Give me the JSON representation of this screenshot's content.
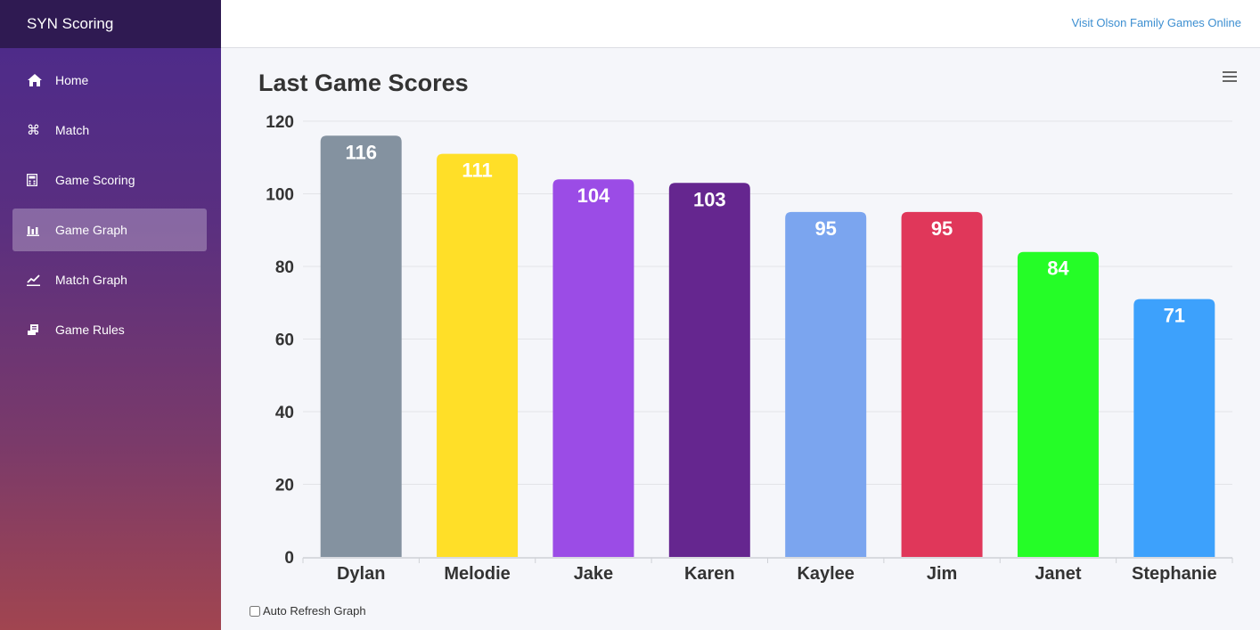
{
  "sidebar": {
    "brand": "SYN Scoring",
    "items": [
      {
        "label": "Home",
        "icon": "home-icon"
      },
      {
        "label": "Match",
        "icon": "command-icon"
      },
      {
        "label": "Game Scoring",
        "icon": "calculator-icon"
      },
      {
        "label": "Game Graph",
        "icon": "bar-chart-icon",
        "active": true
      },
      {
        "label": "Match Graph",
        "icon": "line-chart-icon"
      },
      {
        "label": "Game Rules",
        "icon": "scroll-icon"
      }
    ]
  },
  "header": {
    "link": "Visit Olson Family Games Online"
  },
  "controls": {
    "auto_refresh_label": "Auto Refresh Graph"
  },
  "chart_data": {
    "type": "bar",
    "title": "Last Game Scores",
    "categories": [
      "Dylan",
      "Melodie",
      "Jake",
      "Karen",
      "Kaylee",
      "Jim",
      "Janet",
      "Stephanie"
    ],
    "values": [
      116,
      111,
      104,
      103,
      95,
      95,
      84,
      71
    ],
    "colors": [
      "#8492a0",
      "#ffdf28",
      "#9b4ce6",
      "#65268f",
      "#7ba5ef",
      "#e0375a",
      "#25fd27",
      "#3da1fc"
    ],
    "ylim": [
      0,
      120
    ],
    "yticks": [
      0,
      20,
      40,
      60,
      80,
      100,
      120
    ],
    "grid": true,
    "data_labels": true
  }
}
